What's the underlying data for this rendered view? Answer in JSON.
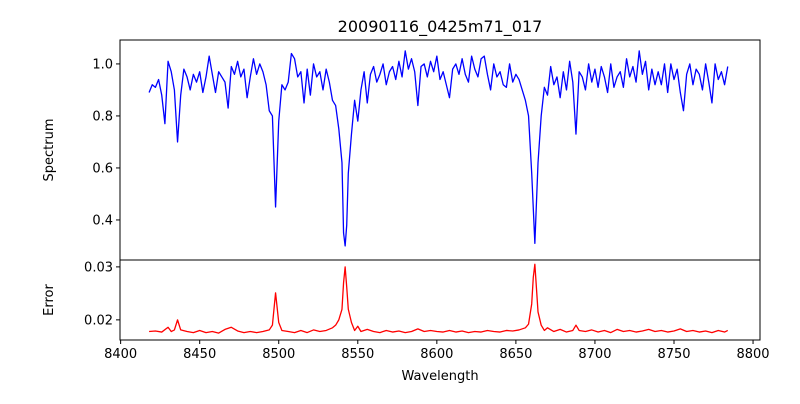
{
  "chart_data": [
    {
      "type": "line",
      "title": "20090116_0425m71_017",
      "xlabel": "",
      "ylabel": "Spectrum",
      "xlim": [
        8399.6,
        8804.4
      ],
      "ylim": [
        0.246,
        1.092
      ],
      "yticks": [
        "0.4",
        "0.6",
        "0.8",
        "1.0"
      ],
      "color": "#0000ff",
      "series": [
        {
          "name": "Spectrum",
          "x": [
            8418,
            8420,
            8422,
            8424,
            8426,
            8428,
            8430,
            8432,
            8434,
            8436,
            8438,
            8440,
            8442,
            8444,
            8446,
            8448,
            8450,
            8452,
            8454,
            8456,
            8458,
            8460,
            8462,
            8464,
            8466,
            8468,
            8470,
            8472,
            8474,
            8476,
            8478,
            8480,
            8482,
            8484,
            8486,
            8488,
            8490,
            8492,
            8494,
            8496,
            8498,
            8500,
            8502,
            8504,
            8506,
            8508,
            8510,
            8512,
            8514,
            8516,
            8518,
            8520,
            8522,
            8524,
            8526,
            8528,
            8530,
            8532,
            8534,
            8536,
            8538,
            8540,
            8541,
            8542,
            8543,
            8544,
            8546,
            8548,
            8550,
            8552,
            8554,
            8556,
            8558,
            8560,
            8562,
            8564,
            8566,
            8568,
            8570,
            8572,
            8574,
            8576,
            8578,
            8580,
            8582,
            8584,
            8586,
            8588,
            8590,
            8592,
            8594,
            8596,
            8598,
            8600,
            8602,
            8604,
            8606,
            8608,
            8610,
            8612,
            8614,
            8616,
            8618,
            8620,
            8622,
            8624,
            8626,
            8628,
            8630,
            8632,
            8634,
            8636,
            8638,
            8640,
            8642,
            8644,
            8646,
            8648,
            8650,
            8652,
            8654,
            8656,
            8658,
            8660,
            8662,
            8664,
            8666,
            8668,
            8670,
            8672,
            8674,
            8676,
            8678,
            8680,
            8682,
            8684,
            8686,
            8688,
            8690,
            8692,
            8694,
            8696,
            8698,
            8700,
            8702,
            8704,
            8706,
            8708,
            8710,
            8712,
            8714,
            8716,
            8718,
            8720,
            8722,
            8724,
            8726,
            8728,
            8730,
            8732,
            8734,
            8736,
            8738,
            8740,
            8742,
            8744,
            8746,
            8748,
            8750,
            8752,
            8754,
            8756,
            8758,
            8760,
            8762,
            8764,
            8766,
            8768,
            8770,
            8772,
            8774,
            8776,
            8778,
            8780,
            8782,
            8784
          ],
          "y": [
            0.89,
            0.92,
            0.91,
            0.94,
            0.88,
            0.77,
            1.01,
            0.97,
            0.9,
            0.7,
            0.88,
            0.98,
            0.95,
            0.9,
            0.96,
            0.93,
            0.97,
            0.89,
            0.95,
            1.03,
            0.96,
            0.89,
            0.97,
            0.95,
            0.93,
            0.83,
            0.99,
            0.96,
            1.01,
            0.95,
            0.98,
            0.87,
            0.95,
            1.02,
            0.96,
            1.0,
            0.97,
            0.92,
            0.82,
            0.8,
            0.45,
            0.78,
            0.92,
            0.9,
            0.93,
            1.04,
            1.02,
            0.95,
            0.97,
            0.85,
            0.98,
            0.88,
            1.0,
            0.95,
            0.97,
            0.9,
            0.98,
            0.93,
            0.86,
            0.84,
            0.75,
            0.62,
            0.35,
            0.3,
            0.38,
            0.58,
            0.73,
            0.86,
            0.78,
            0.9,
            0.97,
            0.85,
            0.96,
            0.99,
            0.93,
            0.96,
            1.0,
            0.92,
            0.97,
            0.99,
            0.94,
            1.01,
            0.95,
            1.05,
            0.98,
            1.02,
            0.97,
            0.84,
            0.99,
            1.0,
            0.95,
            1.01,
            0.97,
            1.03,
            0.94,
            0.97,
            0.92,
            0.87,
            0.98,
            1.0,
            0.96,
            1.02,
            0.96,
            0.93,
            1.03,
            0.98,
            0.95,
            1.02,
            1.03,
            0.96,
            0.9,
            1.0,
            0.95,
            0.97,
            0.92,
            0.91,
            1.0,
            0.93,
            0.96,
            0.94,
            0.9,
            0.86,
            0.8,
            0.58,
            0.31,
            0.62,
            0.8,
            0.91,
            0.88,
            0.99,
            0.92,
            0.95,
            0.87,
            0.97,
            0.9,
            1.01,
            0.93,
            0.73,
            0.97,
            0.95,
            0.9,
            1.0,
            0.93,
            0.98,
            0.91,
            0.99,
            0.95,
            0.89,
            1.0,
            0.91,
            0.95,
            0.97,
            0.91,
            1.02,
            0.95,
            0.99,
            0.93,
            1.05,
            0.96,
            1.01,
            0.9,
            0.98,
            0.92,
            0.97,
            0.92,
            1.0,
            0.89,
            1.0,
            0.94,
            0.98,
            0.89,
            0.82,
            0.96,
            1.0,
            0.92,
            0.98,
            0.96,
            0.9,
            1.0,
            0.93,
            0.85,
            1.0,
            0.94,
            0.97,
            0.92,
            0.99
          ]
        }
      ]
    },
    {
      "type": "line",
      "xlabel": "Wavelength",
      "ylabel": "Error",
      "xlim": [
        8399.6,
        8804.4
      ],
      "ylim": [
        0.0162,
        0.0313
      ],
      "xticks": [
        "8400",
        "8450",
        "8500",
        "8550",
        "8600",
        "8650",
        "8700",
        "8750",
        "8800"
      ],
      "yticks": [
        "0.02",
        "0.03"
      ],
      "color": "#ff0000",
      "series": [
        {
          "name": "Error",
          "x": [
            8418,
            8422,
            8426,
            8430,
            8432,
            8434,
            8436,
            8438,
            8442,
            8446,
            8450,
            8454,
            8458,
            8462,
            8466,
            8470,
            8474,
            8478,
            8482,
            8486,
            8490,
            8494,
            8496,
            8498,
            8500,
            8502,
            8506,
            8510,
            8514,
            8518,
            8522,
            8526,
            8530,
            8534,
            8536,
            8538,
            8540,
            8541,
            8542,
            8543,
            8544,
            8546,
            8548,
            8550,
            8552,
            8556,
            8560,
            8564,
            8568,
            8572,
            8576,
            8580,
            8584,
            8588,
            8592,
            8596,
            8600,
            8604,
            8608,
            8612,
            8616,
            8620,
            8624,
            8628,
            8632,
            8636,
            8640,
            8644,
            8648,
            8652,
            8656,
            8658,
            8660,
            8661,
            8662,
            8663,
            8664,
            8666,
            8668,
            8670,
            8674,
            8678,
            8682,
            8686,
            8688,
            8690,
            8694,
            8698,
            8702,
            8706,
            8710,
            8714,
            8718,
            8722,
            8726,
            8730,
            8734,
            8738,
            8742,
            8746,
            8750,
            8754,
            8758,
            8762,
            8766,
            8770,
            8774,
            8778,
            8782,
            8784
          ],
          "y": [
            0.0178,
            0.0179,
            0.0177,
            0.0186,
            0.0178,
            0.0181,
            0.02,
            0.0181,
            0.0178,
            0.0176,
            0.018,
            0.0176,
            0.0178,
            0.0175,
            0.0182,
            0.0186,
            0.0179,
            0.0176,
            0.0178,
            0.0176,
            0.0178,
            0.0181,
            0.019,
            0.0251,
            0.0195,
            0.018,
            0.0178,
            0.0176,
            0.018,
            0.0176,
            0.0181,
            0.0178,
            0.018,
            0.0185,
            0.019,
            0.02,
            0.022,
            0.027,
            0.03,
            0.0262,
            0.022,
            0.0195,
            0.018,
            0.0188,
            0.0178,
            0.0182,
            0.0178,
            0.0176,
            0.018,
            0.0177,
            0.0179,
            0.0176,
            0.0178,
            0.0183,
            0.0178,
            0.018,
            0.0178,
            0.0177,
            0.018,
            0.0177,
            0.0179,
            0.0176,
            0.0178,
            0.0177,
            0.018,
            0.0178,
            0.0177,
            0.018,
            0.0179,
            0.0181,
            0.0185,
            0.0192,
            0.023,
            0.028,
            0.0305,
            0.026,
            0.0215,
            0.019,
            0.018,
            0.0185,
            0.0178,
            0.0182,
            0.0177,
            0.018,
            0.019,
            0.018,
            0.0178,
            0.0181,
            0.0177,
            0.018,
            0.0176,
            0.0182,
            0.0178,
            0.018,
            0.0177,
            0.0179,
            0.0182,
            0.0178,
            0.018,
            0.0177,
            0.0179,
            0.0183,
            0.0178,
            0.018,
            0.0177,
            0.0179,
            0.0176,
            0.018,
            0.0177,
            0.018
          ]
        }
      ]
    }
  ]
}
